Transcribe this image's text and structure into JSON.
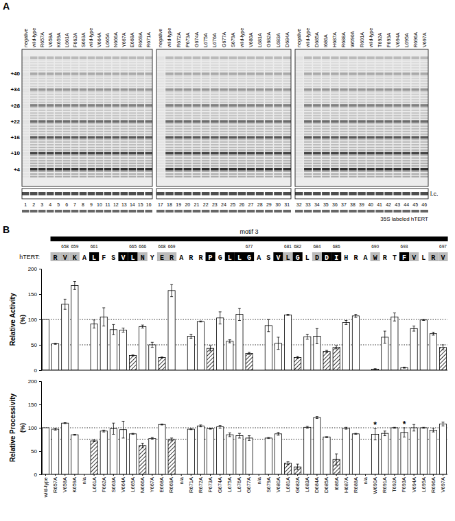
{
  "panel_labels": [
    "A",
    "B"
  ],
  "gels": {
    "panels": [
      {
        "lanes": [
          "negative",
          "wild-type",
          "R657A",
          "V658A",
          "K659A",
          "L661A",
          "F662A",
          "S663A",
          "wild-type",
          "V664A",
          "L665A",
          "N666A",
          "Y667A",
          "E668A",
          "R669A",
          "R671A"
        ],
        "lane_numbers": [
          1,
          2,
          3,
          4,
          5,
          6,
          7,
          8,
          9,
          10,
          11,
          12,
          13,
          14,
          15,
          16
        ]
      },
      {
        "lanes": [
          "negative",
          "wild-type",
          "R672A",
          "P673A",
          "G674A",
          "L675A",
          "L676A",
          "G677A",
          "S679A",
          "wild-type",
          "V680A",
          "L681A",
          "G682A",
          "L683A",
          "D684A"
        ],
        "lane_numbers": [
          17,
          18,
          19,
          20,
          21,
          22,
          23,
          24,
          25,
          26,
          27,
          28,
          29,
          30,
          31
        ]
      },
      {
        "lanes": [
          "negative",
          "wild-type",
          "D685A",
          "I686A",
          "H687A",
          "R688A",
          "W690A",
          "R691A",
          "wild-type",
          "T692A",
          "F693A",
          "V694A",
          "L695A",
          "R696A",
          "V697A"
        ],
        "lane_numbers": [
          32,
          33,
          34,
          35,
          36,
          37,
          38,
          39,
          40,
          41,
          42,
          43,
          44,
          45,
          46
        ]
      }
    ],
    "markers": [
      {
        "value": 40,
        "label": "+40"
      },
      {
        "value": 34,
        "label": "+34"
      },
      {
        "value": 28,
        "label": "+28"
      },
      {
        "value": 22,
        "label": "+22"
      },
      {
        "value": 16,
        "label": "+16"
      },
      {
        "value": 10,
        "label": "+10"
      },
      {
        "value": 4,
        "label": "+4"
      }
    ],
    "loading_control_label": "l.c.",
    "protein_label": "35S labeled hTERT"
  },
  "motif": {
    "title": "motif 3",
    "row_label": "hTERT:",
    "residues": [
      "R",
      "V",
      "K",
      "A",
      "L",
      "F",
      "S",
      "V",
      "L",
      "N",
      "Y",
      "E",
      "R",
      "A",
      "R",
      "R",
      "P",
      "G",
      "L",
      "L",
      "G",
      "A",
      "S",
      "V",
      "L",
      "G",
      "L",
      "D",
      "D",
      "I",
      "H",
      "R",
      "A",
      "W",
      "R",
      "T",
      "F",
      "V",
      "L",
      "R",
      "V"
    ],
    "colors": [
      "#bbbbbb",
      "#bbbbbb",
      "#bbbbbb",
      "none",
      "#000000",
      "none",
      "none",
      "#000000",
      "#000000",
      "#bbbbbb",
      "none",
      "#bbbbbb",
      "#bbbbbb",
      "none",
      "none",
      "none",
      "#000000",
      "none",
      "#000000",
      "#000000",
      "#000000",
      "none",
      "none",
      "#000000",
      "#bbbbbb",
      "#000000",
      "none",
      "#bbbbbb",
      "#000000",
      "#000000",
      "none",
      "none",
      "none",
      "#bbbbbb",
      "none",
      "none",
      "#000000",
      "#bbbbbb",
      "none",
      "#bbbbbb",
      "#bbbbbb"
    ],
    "numbers": [
      null,
      658,
      659,
      null,
      661,
      null,
      null,
      null,
      665,
      666,
      null,
      668,
      669,
      null,
      null,
      null,
      null,
      null,
      null,
      null,
      677,
      null,
      null,
      null,
      681,
      682,
      null,
      684,
      null,
      686,
      null,
      null,
      null,
      690,
      null,
      null,
      693,
      null,
      null,
      null,
      697
    ]
  },
  "chart_data": [
    {
      "type": "bar",
      "y_label": "Relative Activity",
      "y_unit": "(%)",
      "categories": [
        "wild-type",
        "R657A",
        "V658A",
        "K659A",
        "n/a",
        "L661A",
        "F662A",
        "S663A",
        "V664A",
        "L665A",
        "N666A",
        "Y667A",
        "E668A",
        "R669A",
        "n/a",
        "R671A",
        "R672A",
        "P673A",
        "G674A",
        "L675A",
        "L676A",
        "G677A",
        "n/a",
        "S679A",
        "V680A",
        "L681A",
        "G682A",
        "L683A",
        "D684A",
        "D685A",
        "I686A",
        "H687A",
        "R688A",
        "n/a",
        "W690A",
        "R691A",
        "T692A",
        "F693A",
        "V694A",
        "L695A",
        "R696A",
        "V697A"
      ],
      "values": [
        100,
        52,
        130,
        167,
        null,
        91,
        105,
        80,
        79,
        29,
        86,
        50,
        25,
        157,
        null,
        67,
        96,
        43,
        103,
        57,
        110,
        33,
        null,
        88,
        53,
        109,
        25,
        66,
        67,
        37,
        45,
        94,
        107,
        null,
        2,
        65,
        105,
        5,
        82,
        99,
        72,
        45
      ],
      "errors": [
        null,
        1,
        10,
        8,
        null,
        8,
        18,
        10,
        4,
        1,
        3,
        5,
        1,
        12,
        null,
        4,
        1,
        5,
        12,
        3,
        12,
        2,
        null,
        12,
        12,
        1,
        2,
        5,
        15,
        2,
        3,
        4,
        3,
        null,
        1,
        12,
        8,
        1,
        5,
        1,
        3,
        5
      ],
      "colors": [
        "white",
        "white",
        "white",
        "white",
        "white",
        "white",
        "white",
        "white",
        "white",
        "hatch",
        "white",
        "white",
        "hatch",
        "white",
        "white",
        "white",
        "white",
        "hatch",
        "white",
        "white",
        "white",
        "hatch",
        "white",
        "white",
        "white",
        "white",
        "hatch",
        "white",
        "white",
        "hatch",
        "hatch",
        "white",
        "white",
        "white",
        "white",
        "white",
        "white",
        "white",
        "white",
        "white",
        "white",
        "hatch"
      ],
      "ylim": [
        0,
        200
      ],
      "yticks": [
        0,
        50,
        100,
        150,
        200
      ],
      "reference_lines": [
        50,
        100
      ],
      "tick_labels": "y"
    },
    {
      "type": "bar",
      "y_label": "Relative Processivity",
      "y_unit": "(%)",
      "categories": [
        "wild-type",
        "R657A",
        "V658A",
        "K659A",
        "n/a",
        "L661A",
        "F662A",
        "S663A",
        "V664A",
        "L665A",
        "N666A",
        "Y667A",
        "E668A",
        "R669A",
        "n/a",
        "R671A",
        "R672A",
        "P673A",
        "G674A",
        "L675A",
        "L676A",
        "G677A",
        "n/a",
        "S679A",
        "V680A",
        "L681A",
        "G682A",
        "L683A",
        "D684A",
        "D685A",
        "I686A",
        "H687A",
        "R688A",
        "n/a",
        "W690A",
        "R691A",
        "T692A",
        "F693A",
        "V694A",
        "L695A",
        "R696A",
        "V697A"
      ],
      "values": [
        100,
        97,
        110,
        85,
        null,
        72,
        93,
        98,
        96,
        87,
        62,
        77,
        107,
        75,
        null,
        97,
        104,
        98,
        102,
        85,
        83,
        78,
        null,
        78,
        87,
        24,
        16,
        101,
        122,
        80,
        32,
        99,
        87,
        null,
        86,
        88,
        100,
        90,
        100,
        100,
        95,
        108
      ],
      "errors": [
        null,
        2,
        1,
        1,
        null,
        2,
        2,
        12,
        18,
        1,
        5,
        2,
        1,
        3,
        null,
        1,
        2,
        1,
        3,
        4,
        5,
        5,
        null,
        1,
        3,
        3,
        6,
        2,
        2,
        1,
        12,
        2,
        1,
        null,
        12,
        5,
        1,
        10,
        7,
        1,
        4,
        4
      ],
      "colors": [
        "white",
        "white",
        "white",
        "white",
        "white",
        "hatch",
        "white",
        "white",
        "white",
        "white",
        "hatch",
        "white",
        "white",
        "hatch",
        "white",
        "white",
        "white",
        "white",
        "white",
        "white",
        "white",
        "white",
        "white",
        "white",
        "white",
        "hatch",
        "hatch",
        "white",
        "white",
        "white",
        "hatch",
        "white",
        "white",
        "white",
        "white",
        "white",
        "white",
        "white",
        "white",
        "white",
        "white",
        "white"
      ],
      "ylim": [
        0,
        200
      ],
      "yticks": [
        0,
        50,
        100,
        150,
        200
      ],
      "reference_lines": [
        75,
        100
      ],
      "annotations": [
        {
          "category": "W690A",
          "text": "*"
        },
        {
          "category": "F693A",
          "text": "*"
        }
      ]
    }
  ]
}
